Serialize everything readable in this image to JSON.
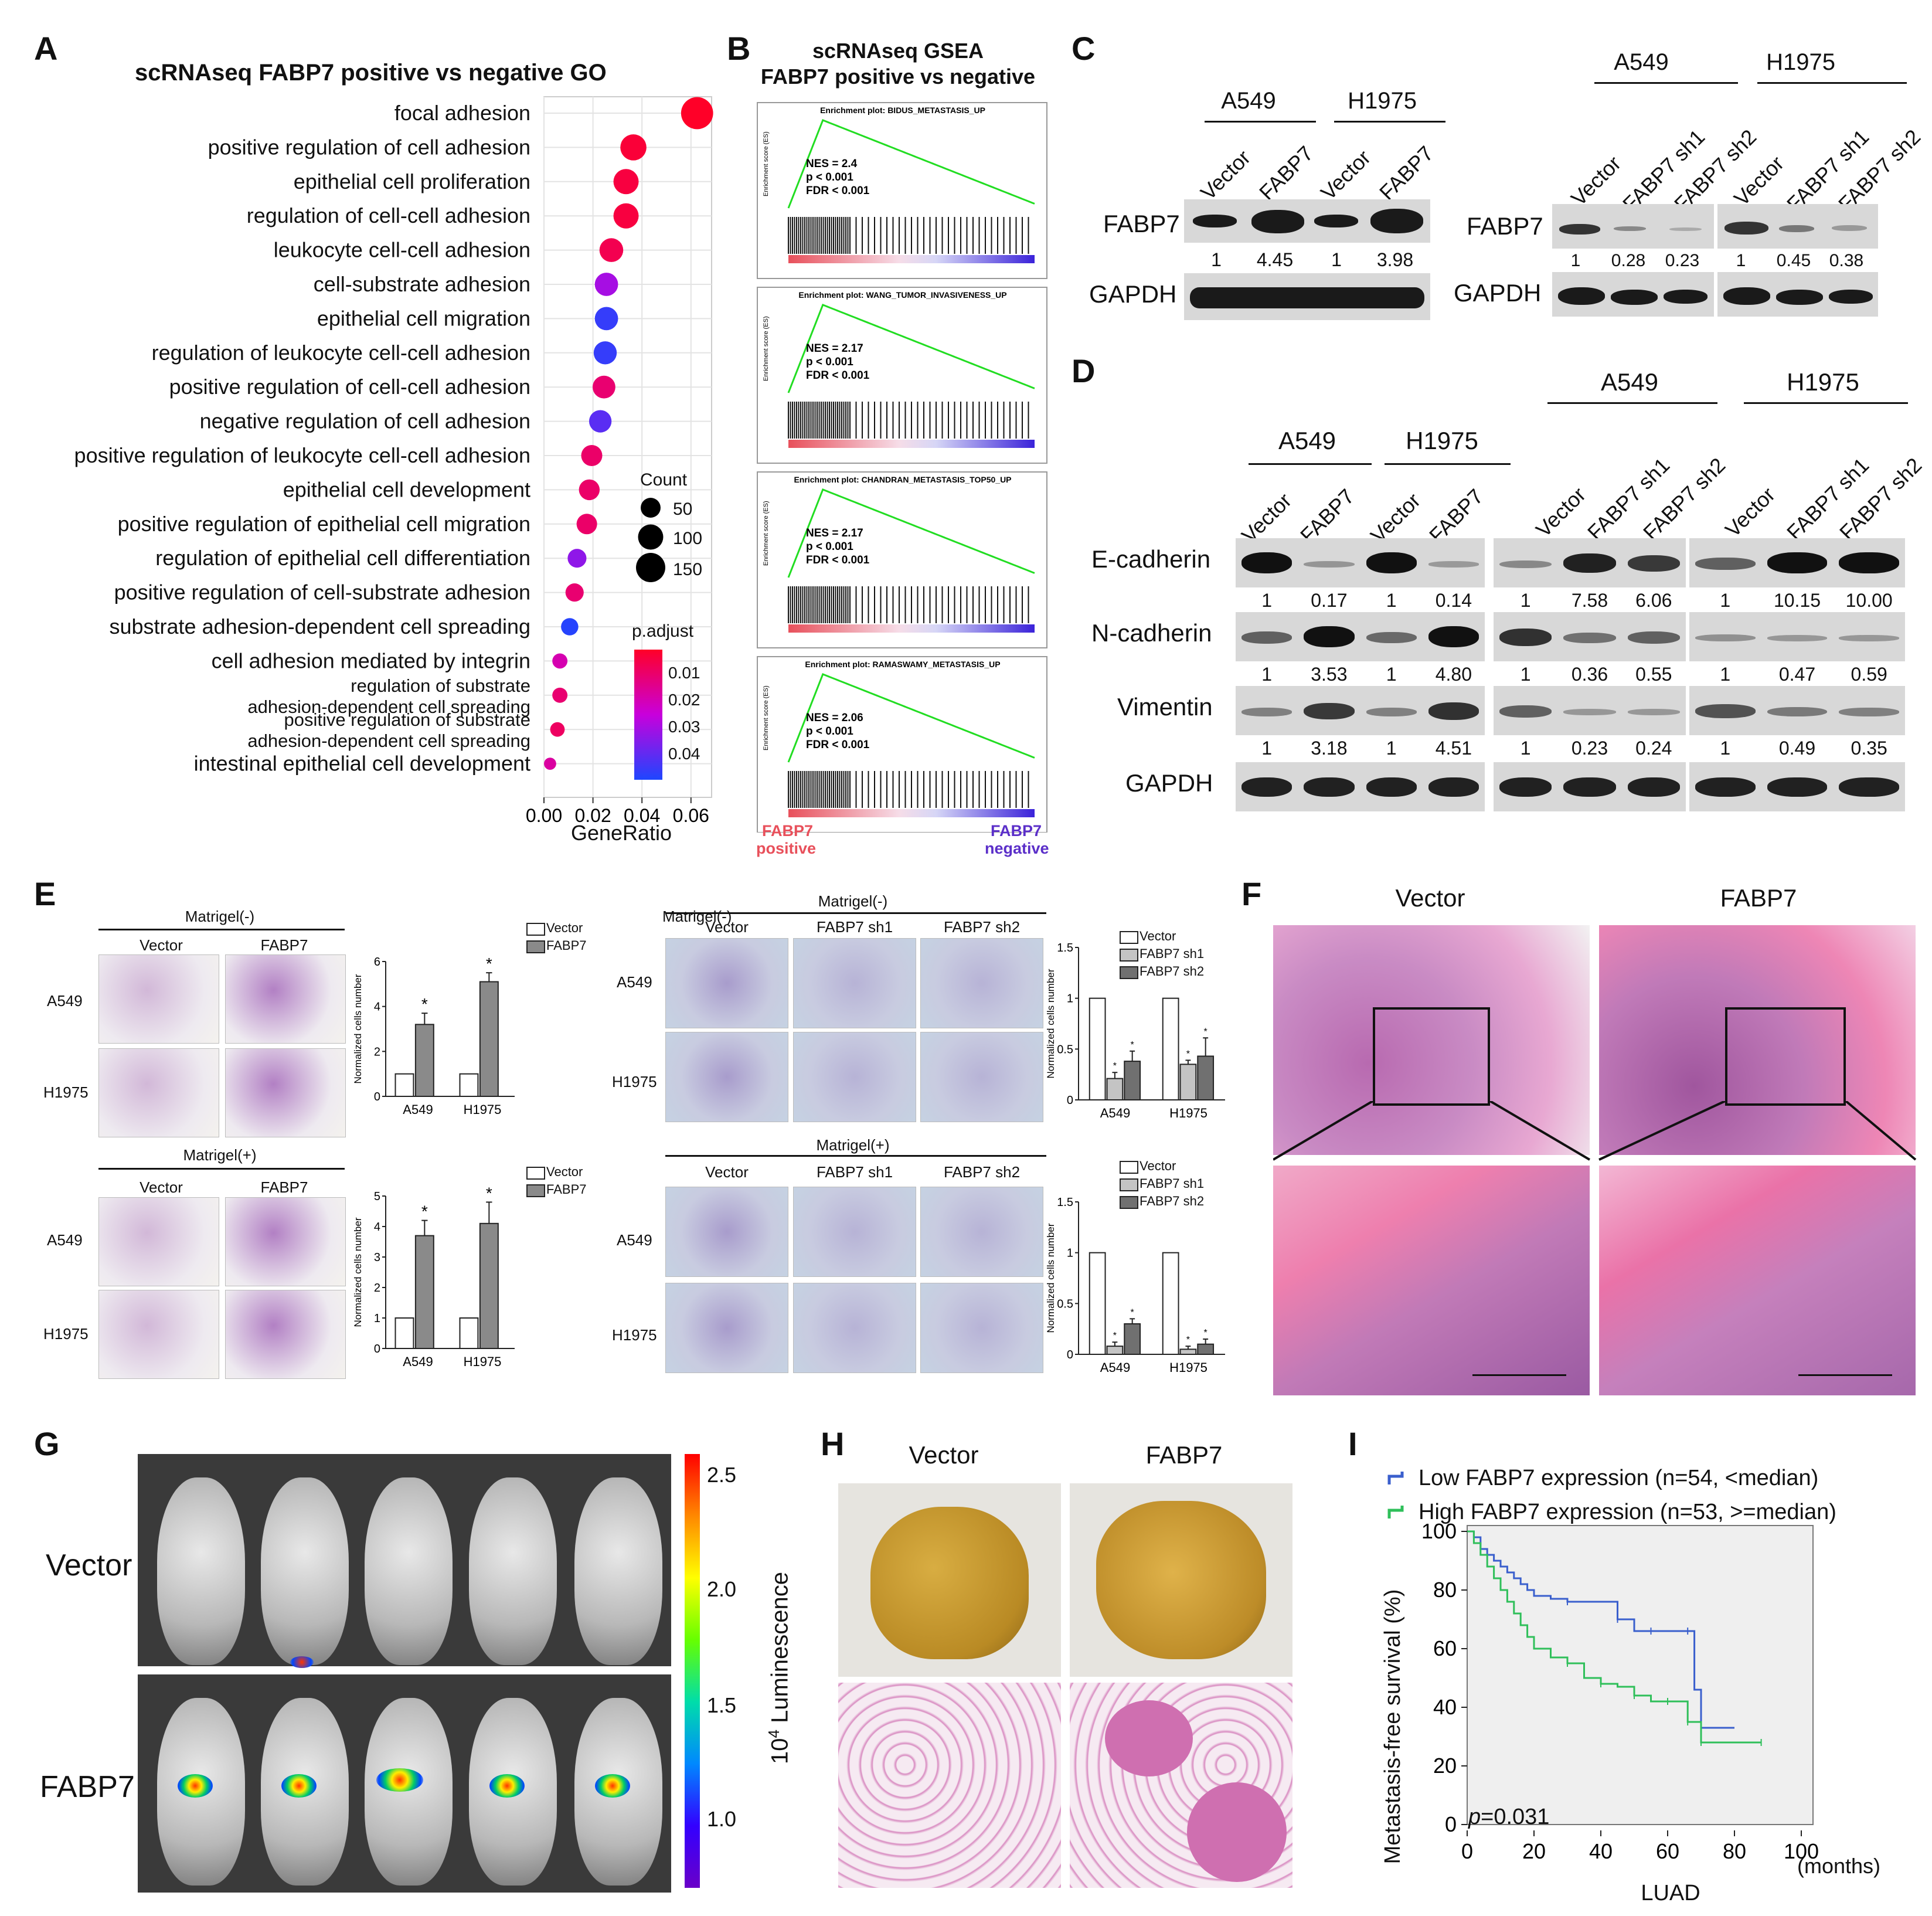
{
  "panels": {
    "A": "A",
    "B": "B",
    "C": "C",
    "D": "D",
    "E": "E",
    "F": "F",
    "G": "G",
    "H": "H",
    "I": "I"
  },
  "panelA": {
    "title": "scRNAseq  FABP7 positive vs negative GO",
    "xlabel": "GeneRatio",
    "xticks": [
      "0.00",
      "0.02",
      "0.04",
      "0.06"
    ],
    "count_title": "Count",
    "count_values": [
      "50",
      "100",
      "150"
    ],
    "padj_title": "p.adjust",
    "padj_ticks": [
      "0.01",
      "0.02",
      "0.03",
      "0.04"
    ],
    "terms": [
      {
        "label": "focal adhesion",
        "lines": [
          "focal adhesion"
        ]
      },
      {
        "label": "positive regulation of cell adhesion",
        "lines": [
          "positive regulation of cell adhesion"
        ]
      },
      {
        "label": "epithelial cell proliferation",
        "lines": [
          "epithelial cell proliferation"
        ]
      },
      {
        "label": "regulation of cell-cell adhesion",
        "lines": [
          "regulation of cell-cell adhesion"
        ]
      },
      {
        "label": "leukocyte cell-cell adhesion",
        "lines": [
          "leukocyte cell-cell adhesion"
        ]
      },
      {
        "label": "cell-substrate adhesion",
        "lines": [
          "cell-substrate adhesion"
        ]
      },
      {
        "label": "epithelial cell migration",
        "lines": [
          "epithelial cell migration"
        ]
      },
      {
        "label": "regulation of leukocyte cell-cell adhesion",
        "lines": [
          "regulation of leukocyte cell-cell adhesion"
        ]
      },
      {
        "label": "positive regulation of cell-cell adhesion",
        "lines": [
          "positive regulation of cell-cell adhesion"
        ]
      },
      {
        "label": "negative regulation of cell adhesion",
        "lines": [
          "negative regulation of cell adhesion"
        ]
      },
      {
        "label": "positive regulation of leukocyte cell-cell adhesion",
        "lines": [
          "positive regulation of leukocyte cell-cell adhesion"
        ]
      },
      {
        "label": "epithelial cell development",
        "lines": [
          "epithelial cell development"
        ]
      },
      {
        "label": "positive regulation of epithelial cell migration",
        "lines": [
          "positive regulation of epithelial cell migration"
        ]
      },
      {
        "label": "regulation of epithelial cell differentiation",
        "lines": [
          "regulation of epithelial cell differentiation"
        ]
      },
      {
        "label": "positive regulation of cell-substrate adhesion",
        "lines": [
          "positive regulation of cell-substrate adhesion"
        ]
      },
      {
        "label": "substrate adhesion-dependent cell spreading",
        "lines": [
          "substrate adhesion-dependent cell spreading"
        ]
      },
      {
        "label": "cell adhesion mediated by integrin",
        "lines": [
          "cell adhesion mediated by integrin"
        ]
      },
      {
        "label": "regulation of substrate adhesion-dependent cell spreading",
        "lines": [
          "regulation of substrate",
          "adhesion-dependent cell spreading"
        ]
      },
      {
        "label": "positive regulation of substrate adhesion-dependent cell spreading",
        "lines": [
          "positive regulation of substrate",
          "adhesion-dependent cell spreading"
        ]
      },
      {
        "label": "intestinal epithelial cell development",
        "lines": [
          "intestinal epithelial cell development"
        ]
      }
    ]
  },
  "panelB": {
    "title1": "scRNAseq GSEA",
    "title2": "FABP7 positive vs negative",
    "ylabel": "Enrichment score (ES)",
    "plots": [
      {
        "title": "Enrichment plot: BIDUS_METASTASIS_UP",
        "nes": "NES = 2.4",
        "p": "p < 0.001",
        "fdr": "FDR < 0.001"
      },
      {
        "title": "Enrichment plot: WANG_TUMOR_INVASIVENESS_UP",
        "nes": "NES = 2.17",
        "p": "p < 0.001",
        "fdr": "FDR < 0.001"
      },
      {
        "title": "Enrichment plot: CHANDRAN_METASTASIS_TOP50_UP",
        "nes": "NES = 2.17",
        "p": "p < 0.001",
        "fdr": "FDR < 0.001"
      },
      {
        "title": "Enrichment plot: RAMASWAMY_METASTASIS_UP",
        "nes": "NES = 2.06",
        "p": "p < 0.001",
        "fdr": "FDR < 0.001"
      }
    ],
    "pos_label1": "FABP7",
    "pos_label2": "positive",
    "neg_label1": "FABP7",
    "neg_label2": "negative"
  },
  "panelC": {
    "a549": "A549",
    "h1975": "H1975",
    "vector": "Vector",
    "fabp7": "FABP7",
    "sh1": "FABP7 sh1",
    "sh2": "FABP7 sh2",
    "row1": "FABP7",
    "row2": "GAPDH",
    "left_vals": [
      "1",
      "4.45",
      "1",
      "3.98"
    ],
    "right_vals": [
      "1",
      "0.28",
      "0.23",
      "1",
      "0.45",
      "0.38"
    ]
  },
  "panelD": {
    "a549": "A549",
    "h1975": "H1975",
    "vector": "Vector",
    "fabp7": "FABP7",
    "sh1": "FABP7 sh1",
    "sh2": "FABP7 sh2",
    "rows": [
      {
        "name": "E-cadherin",
        "left": [
          "1",
          "0.17",
          "1",
          "0.14"
        ],
        "mid": [
          "1",
          "7.58",
          "6.06"
        ],
        "right": [
          "1",
          "10.15",
          "10.00"
        ]
      },
      {
        "name": "N-cadherin",
        "left": [
          "1",
          "3.53",
          "1",
          "4.80"
        ],
        "mid": [
          "1",
          "0.36",
          "0.55"
        ],
        "right": [
          "1",
          "0.47",
          "0.59"
        ]
      },
      {
        "name": "Vimentin",
        "left": [
          "1",
          "3.18",
          "1",
          "4.51"
        ],
        "mid": [
          "1",
          "0.23",
          "0.24"
        ],
        "right": [
          "1",
          "0.49",
          "0.35"
        ]
      },
      {
        "name": "GAPDH",
        "left": [],
        "mid": [],
        "right": []
      }
    ]
  },
  "panelE": {
    "mminus": "Matrigel(-)",
    "mplus": "Matrigel(+)",
    "vector": "Vector",
    "fabp7": "FABP7",
    "sh1": "FABP7 sh1",
    "sh2": "FABP7 sh2",
    "a549": "A549",
    "h1975": "H1975",
    "ylabel": "Normalized cells number",
    "star": "*"
  },
  "panelF": {
    "vector": "Vector",
    "fabp7": "FABP7"
  },
  "panelG": {
    "vector": "Vector",
    "fabp7": "FABP7",
    "scale_label": "10",
    "scale_exp": "4",
    "scale_unit": " Luminescence",
    "scale_ticks": [
      "2.5",
      "2.0",
      "1.5",
      "1.0"
    ]
  },
  "panelH": {
    "vector": "Vector",
    "fabp7": "FABP7"
  },
  "panelI": {
    "legend_low": "Low FABP7 expression (n=54, <median)",
    "legend_high": "High FABP7 expression (n=53, >=median)",
    "ylabel": "Metastasis-free survival (%)",
    "xlabel": "LUAD",
    "xunit": "(months)",
    "pvalue_p": "p",
    "pvalue": "=0.031",
    "xticks": [
      "0",
      "20",
      "40",
      "60",
      "80",
      "100"
    ],
    "yticks": [
      "0",
      "20",
      "40",
      "60",
      "80",
      "100"
    ]
  },
  "colors": {
    "low": "#3a5fcd",
    "high": "#2fbf5a",
    "gsea_curve": "#22dd22",
    "pos": "#e8505b",
    "neg": "#5b2fc9"
  },
  "chart_data": [
    {
      "type": "scatter",
      "title": "scRNAseq  FABP7 positive vs negative GO",
      "xlabel": "GeneRatio",
      "xlim": [
        0,
        0.065
      ],
      "categories": [
        "focal adhesion",
        "positive regulation of cell adhesion",
        "epithelial cell proliferation",
        "regulation of cell-cell adhesion",
        "leukocyte cell-cell adhesion",
        "cell-substrate adhesion",
        "epithelial cell migration",
        "regulation of leukocyte cell-cell adhesion",
        "positive regulation of cell-cell adhesion",
        "negative regulation of cell adhesion",
        "positive regulation of leukocyte cell-cell adhesion",
        "epithelial cell development",
        "positive regulation of epithelial cell migration",
        "regulation of epithelial cell differentiation",
        "positive regulation of cell-substrate adhesion",
        "substrate adhesion-dependent cell spreading",
        "cell adhesion mediated by integrin",
        "regulation of substrate adhesion-dependent cell spreading",
        "positive regulation of substrate adhesion-dependent cell spreading",
        "intestinal epithelial cell development"
      ],
      "gene_ratio": [
        0.0625,
        0.0365,
        0.0335,
        0.0335,
        0.0275,
        0.0255,
        0.0255,
        0.025,
        0.0245,
        0.023,
        0.0195,
        0.0185,
        0.0175,
        0.0135,
        0.0125,
        0.0105,
        0.0065,
        0.0065,
        0.0055,
        0.0025
      ],
      "count": [
        190,
        110,
        100,
        100,
        85,
        80,
        80,
        78,
        75,
        72,
        60,
        57,
        55,
        42,
        38,
        32,
        20,
        20,
        17,
        8
      ],
      "p_adjust": [
        0.003,
        0.005,
        0.006,
        0.006,
        0.008,
        0.03,
        0.045,
        0.045,
        0.012,
        0.04,
        0.011,
        0.011,
        0.011,
        0.033,
        0.012,
        0.047,
        0.02,
        0.012,
        0.01,
        0.018
      ]
    },
    {
      "type": "bar",
      "title": "Matrigel(-)",
      "ylabel": "Normalized cells number",
      "categories": [
        "A549",
        "H1975"
      ],
      "ylim": [
        0,
        6
      ],
      "series": [
        {
          "name": "Vector",
          "values": [
            1,
            1
          ],
          "err": [
            0,
            0
          ]
        },
        {
          "name": "FABP7",
          "values": [
            3.2,
            5.1
          ],
          "err": [
            0.5,
            0.4
          ]
        }
      ]
    },
    {
      "type": "bar",
      "title": "Matrigel(+)",
      "ylabel": "Normalized cells number",
      "categories": [
        "A549",
        "H1975"
      ],
      "ylim": [
        0,
        5
      ],
      "series": [
        {
          "name": "Vector",
          "values": [
            1,
            1
          ],
          "err": [
            0,
            0
          ]
        },
        {
          "name": "FABP7",
          "values": [
            3.7,
            4.1
          ],
          "err": [
            0.5,
            0.7
          ]
        }
      ]
    },
    {
      "type": "bar",
      "title": "Matrigel(-)",
      "ylabel": "Normalized cells number",
      "categories": [
        "A549",
        "H1975"
      ],
      "ylim": [
        0,
        1.5
      ],
      "series": [
        {
          "name": "Vector",
          "values": [
            1,
            1
          ],
          "err": [
            0,
            0
          ]
        },
        {
          "name": "FABP7 sh1",
          "values": [
            0.21,
            0.35
          ],
          "err": [
            0.06,
            0.04
          ]
        },
        {
          "name": "FABP7 sh2",
          "values": [
            0.38,
            0.43
          ],
          "err": [
            0.1,
            0.18
          ]
        }
      ]
    },
    {
      "type": "bar",
      "title": "Matrigel(+)",
      "ylabel": "Normalized cells number",
      "categories": [
        "A549",
        "H1975"
      ],
      "ylim": [
        0,
        1.5
      ],
      "series": [
        {
          "name": "Vector",
          "values": [
            1,
            1
          ],
          "err": [
            0,
            0
          ]
        },
        {
          "name": "FABP7 sh1",
          "values": [
            0.08,
            0.05
          ],
          "err": [
            0.04,
            0.03
          ]
        },
        {
          "name": "FABP7 sh2",
          "values": [
            0.3,
            0.1
          ],
          "err": [
            0.05,
            0.05
          ]
        }
      ]
    },
    {
      "type": "line",
      "ylabel": "Metastasis-free survival (%)",
      "xlabel": "LUAD",
      "xlim": [
        0,
        100
      ],
      "ylim": [
        0,
        100
      ],
      "series": [
        {
          "name": "Low FABP7 expression (n=54, <median)",
          "x": [
            0,
            2,
            4,
            6,
            8,
            10,
            12,
            14,
            16,
            18,
            20,
            25,
            30,
            35,
            45,
            50,
            55,
            60,
            66,
            68,
            70,
            80
          ],
          "y": [
            100,
            98,
            94,
            92,
            90,
            88,
            86,
            84,
            82,
            80,
            78,
            77,
            76,
            76,
            70,
            66,
            66,
            66,
            66,
            46,
            33,
            33
          ]
        },
        {
          "name": "High FABP7 expression (n=53, >=median)",
          "x": [
            0,
            2,
            4,
            6,
            8,
            10,
            12,
            14,
            16,
            18,
            20,
            25,
            30,
            35,
            40,
            45,
            50,
            55,
            60,
            65,
            66,
            68,
            70,
            80,
            88
          ],
          "y": [
            100,
            96,
            92,
            88,
            84,
            80,
            76,
            72,
            68,
            64,
            60,
            57,
            55,
            50,
            48,
            47,
            44,
            42,
            42,
            42,
            35,
            35,
            28,
            28,
            28
          ]
        }
      ]
    }
  ]
}
